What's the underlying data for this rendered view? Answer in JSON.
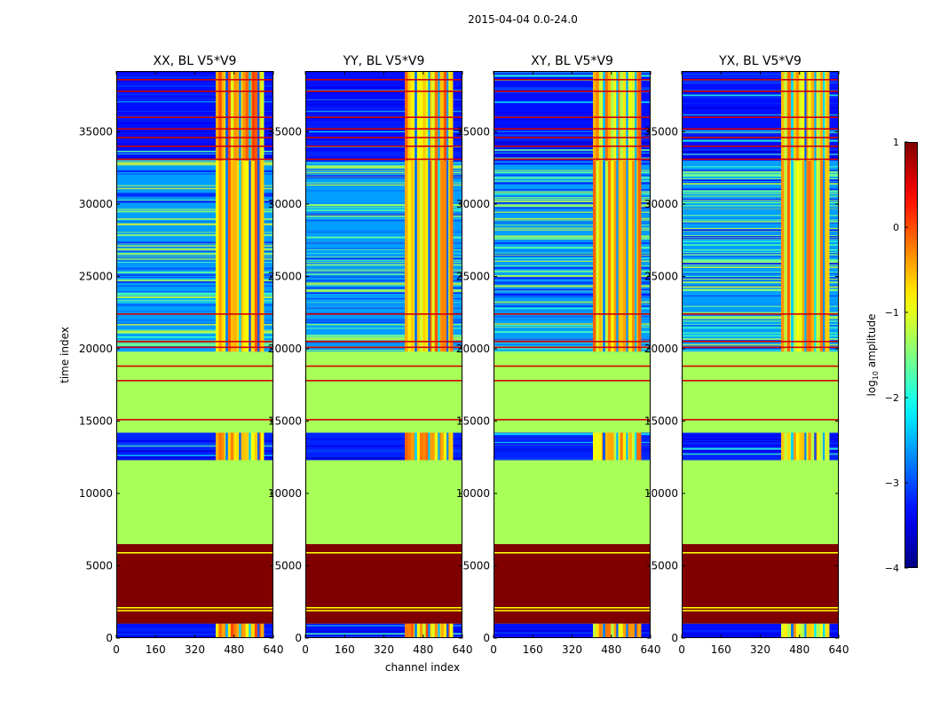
{
  "figure": {
    "suptitle": "2015-04-04 0.0-24.0"
  },
  "colors": {
    "frame": "#000000",
    "background": "#ffffff"
  },
  "chart_data": {
    "type": "heatmap",
    "colormap": "jet",
    "xlabel": "channel index",
    "ylabel": "time index",
    "xlim": [
      0,
      640
    ],
    "ylim": [
      0,
      39200
    ],
    "xticks": [
      0,
      160,
      320,
      480,
      640
    ],
    "xtick_labels": [
      "0",
      "160",
      "320",
      "480",
      "640"
    ],
    "yticks": [
      0,
      5000,
      10000,
      15000,
      20000,
      25000,
      30000,
      35000
    ],
    "ytick_labels": [
      "0",
      "5000",
      "10000",
      "15000",
      "20000",
      "25000",
      "30000",
      "35000"
    ],
    "colorbar": {
      "label_prefix": "log",
      "label_sub": "10",
      "label_suffix": " amplitude",
      "range": [
        -4,
        1
      ],
      "ticks": [
        1,
        0,
        -1,
        -2,
        -3,
        -4
      ],
      "tick_labels": [
        "1",
        "0",
        "−1",
        "−2",
        "−3",
        "−4"
      ]
    },
    "panels": [
      {
        "title": "XX, BL V5*V9",
        "polarization": "XX"
      },
      {
        "title": "YY, BL V5*V9",
        "polarization": "YY"
      },
      {
        "title": "XY, BL V5*V9",
        "polarization": "XY"
      },
      {
        "title": "YX, BL V5*V9",
        "polarization": "YX"
      }
    ],
    "rfi_channel_band": [
      405,
      600
    ],
    "rfi_channel_gaps": [
      [
        445,
        455
      ],
      [
        500,
        508
      ],
      [
        540,
        548
      ],
      [
        575,
        583
      ]
    ],
    "time_segments": [
      {
        "from": 0,
        "to": 1000,
        "kind": "noise",
        "log_amp": -3.3
      },
      {
        "from": 1000,
        "to": 6500,
        "kind": "flagged",
        "log_amp": 1.0
      },
      {
        "from": 6500,
        "to": 12300,
        "kind": "flat",
        "log_amp": -1.3
      },
      {
        "from": 12300,
        "to": 14200,
        "kind": "noise",
        "log_amp": -3.2
      },
      {
        "from": 14200,
        "to": 19800,
        "kind": "flat",
        "log_amp": -1.3
      },
      {
        "from": 19800,
        "to": 33000,
        "kind": "striped",
        "log_amp": -2.6
      },
      {
        "from": 33000,
        "to": 39200,
        "kind": "noise",
        "log_amp": -3.3
      }
    ],
    "flag_lines": [
      1900,
      2100,
      5900,
      15100,
      17800,
      18800,
      20100,
      20500,
      22400,
      33100,
      34000,
      34600,
      35200,
      36000,
      37800,
      38600
    ]
  }
}
